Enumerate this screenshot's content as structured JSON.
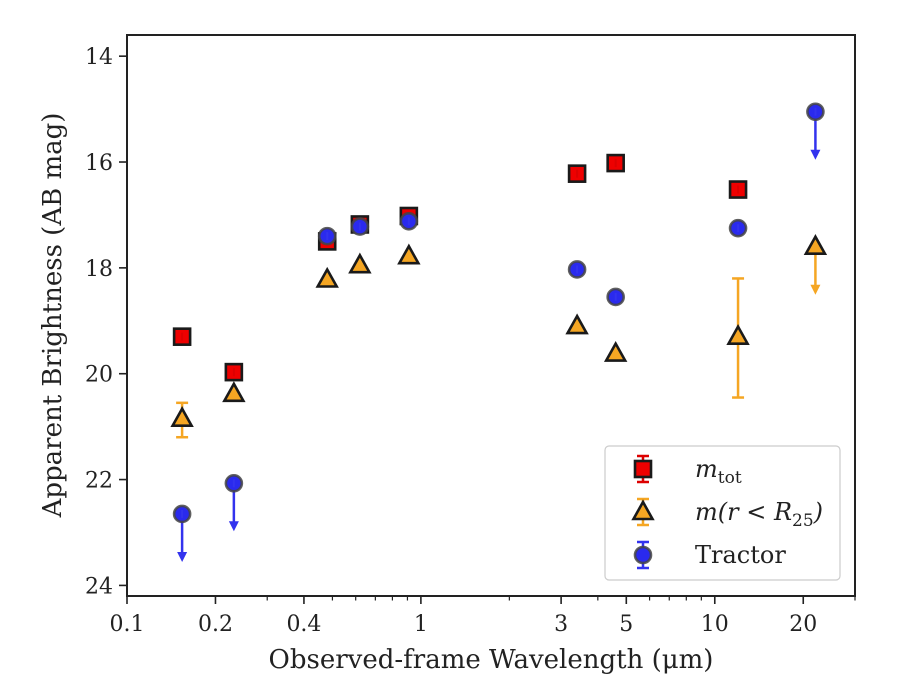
{
  "chart_data": {
    "type": "scatter",
    "xlabel": "Observed-frame Wavelength (μm)",
    "ylabel": "Apparent Brightness (AB mag)",
    "x_scale": "log",
    "xlim": [
      0.1,
      30
    ],
    "ylim": [
      24.2,
      13.6
    ],
    "y_inverted": true,
    "x_ticks": [
      {
        "value": 0.1,
        "label": "0.1"
      },
      {
        "value": 0.2,
        "label": "0.2"
      },
      {
        "value": 0.4,
        "label": "0.4"
      },
      {
        "value": 1,
        "label": "1"
      },
      {
        "value": 3,
        "label": "3"
      },
      {
        "value": 5,
        "label": "5"
      },
      {
        "value": 10,
        "label": "10"
      },
      {
        "value": 20,
        "label": "20"
      }
    ],
    "y_ticks": [
      {
        "value": 14,
        "label": "14"
      },
      {
        "value": 16,
        "label": "16"
      },
      {
        "value": 18,
        "label": "18"
      },
      {
        "value": 20,
        "label": "20"
      },
      {
        "value": 22,
        "label": "22"
      },
      {
        "value": 24,
        "label": "24"
      }
    ],
    "grid": false,
    "legend_position": "bottom-right",
    "series": [
      {
        "name": "m_tot",
        "legend_main": "m",
        "legend_sub": "tot",
        "marker": "square",
        "fill": "#ee0000",
        "error_color": "#dd0000",
        "points": [
          {
            "x": 0.154,
            "y": 19.3
          },
          {
            "x": 0.231,
            "y": 19.97
          },
          {
            "x": 0.48,
            "y": 17.5
          },
          {
            "x": 0.62,
            "y": 17.18
          },
          {
            "x": 0.91,
            "y": 17.02
          },
          {
            "x": 3.4,
            "y": 16.22
          },
          {
            "x": 4.6,
            "y": 16.02
          },
          {
            "x": 12.0,
            "y": 16.52
          }
        ]
      },
      {
        "name": "m(r < R25)",
        "legend_main": "m(r < R",
        "legend_sub": "25",
        "legend_tail": ")",
        "marker": "triangle",
        "fill": "#f5a623",
        "error_color": "#f5a623",
        "points": [
          {
            "x": 0.154,
            "y": 20.85,
            "yerr": [
              0.3,
              0.35
            ]
          },
          {
            "x": 0.231,
            "y": 20.38
          },
          {
            "x": 0.48,
            "y": 18.22
          },
          {
            "x": 0.62,
            "y": 17.95
          },
          {
            "x": 0.91,
            "y": 17.78
          },
          {
            "x": 3.4,
            "y": 19.1
          },
          {
            "x": 4.6,
            "y": 19.62
          },
          {
            "x": 12.0,
            "y": 19.3,
            "yerr": [
              1.1,
              1.15
            ]
          },
          {
            "x": 22.0,
            "y": 17.6,
            "upper_limit": true
          }
        ]
      },
      {
        "name": "Tractor",
        "legend_main": "Tractor",
        "marker": "circle",
        "fill": "#2a2aee",
        "error_color": "#3333ee",
        "points": [
          {
            "x": 0.154,
            "y": 22.65,
            "upper_limit": true
          },
          {
            "x": 0.231,
            "y": 22.07,
            "upper_limit": true
          },
          {
            "x": 0.48,
            "y": 17.4
          },
          {
            "x": 0.62,
            "y": 17.22
          },
          {
            "x": 0.91,
            "y": 17.12
          },
          {
            "x": 3.4,
            "y": 18.03
          },
          {
            "x": 4.6,
            "y": 18.55
          },
          {
            "x": 12.0,
            "y": 17.25
          },
          {
            "x": 22.0,
            "y": 15.05,
            "upper_limit": true
          }
        ]
      }
    ]
  }
}
